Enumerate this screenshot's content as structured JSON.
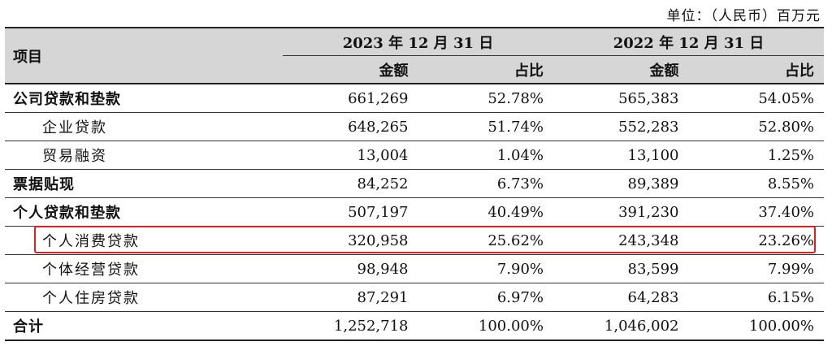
{
  "unit_note": "单位：（人民币）百万元",
  "header": {
    "item_label": "项目",
    "periods": [
      {
        "label": "2023 年 12 月 31 日",
        "amount_label": "金额",
        "ratio_label": "占比"
      },
      {
        "label": "2022 年 12 月 31 日",
        "amount_label": "金额",
        "ratio_label": "占比"
      }
    ]
  },
  "rows": [
    {
      "name": "公司贷款和垫款",
      "level": "main",
      "amount_2023": "661,269",
      "ratio_2023": "52.78%",
      "amount_2022": "565,383",
      "ratio_2022": "54.05%"
    },
    {
      "name": "企业贷款",
      "level": "sub",
      "amount_2023": "648,265",
      "ratio_2023": "51.74%",
      "amount_2022": "552,283",
      "ratio_2022": "52.80%"
    },
    {
      "name": "贸易融资",
      "level": "sub",
      "amount_2023": "13,004",
      "ratio_2023": "1.04%",
      "amount_2022": "13,100",
      "ratio_2022": "1.25%"
    },
    {
      "name": "票据贴现",
      "level": "main",
      "amount_2023": "84,252",
      "ratio_2023": "6.73%",
      "amount_2022": "89,389",
      "ratio_2022": "8.55%"
    },
    {
      "name": "个人贷款和垫款",
      "level": "main",
      "amount_2023": "507,197",
      "ratio_2023": "40.49%",
      "amount_2022": "391,230",
      "ratio_2022": "37.40%"
    },
    {
      "name": "个人消费贷款",
      "level": "sub",
      "highlighted": true,
      "amount_2023": "320,958",
      "ratio_2023": "25.62%",
      "amount_2022": "243,348",
      "ratio_2022": "23.26%"
    },
    {
      "name": "个体经营贷款",
      "level": "sub",
      "amount_2023": "98,948",
      "ratio_2023": "7.90%",
      "amount_2022": "83,599",
      "ratio_2022": "7.99%"
    },
    {
      "name": "个人住房贷款",
      "level": "sub",
      "amount_2023": "87,291",
      "ratio_2023": "6.97%",
      "amount_2022": "64,283",
      "ratio_2022": "6.15%"
    }
  ],
  "total": {
    "name": "合计",
    "amount_2023": "1,252,718",
    "ratio_2023": "100.00%",
    "amount_2022": "1,046,002",
    "ratio_2022": "100.00%"
  },
  "colors": {
    "header_background": "#d6d6d6",
    "highlight_border": "#e02020",
    "rule": "#222222"
  }
}
